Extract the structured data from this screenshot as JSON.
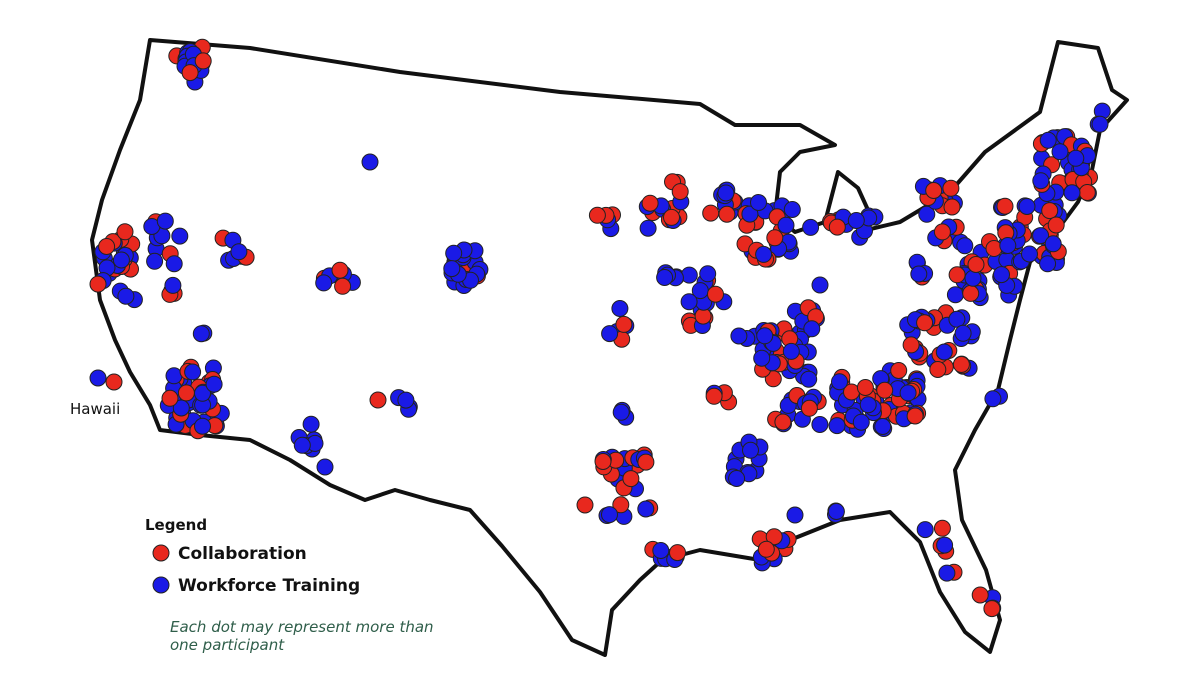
{
  "map": {
    "hawaii_label": "Hawaii"
  },
  "legend": {
    "title": "Legend",
    "items": [
      {
        "label": "Collaboration",
        "color": "#e8281e"
      },
      {
        "label": "Workforce Training",
        "color": "#1a1ae6"
      }
    ]
  },
  "note": [
    "Each dot may represent more than",
    "one participant"
  ]
}
